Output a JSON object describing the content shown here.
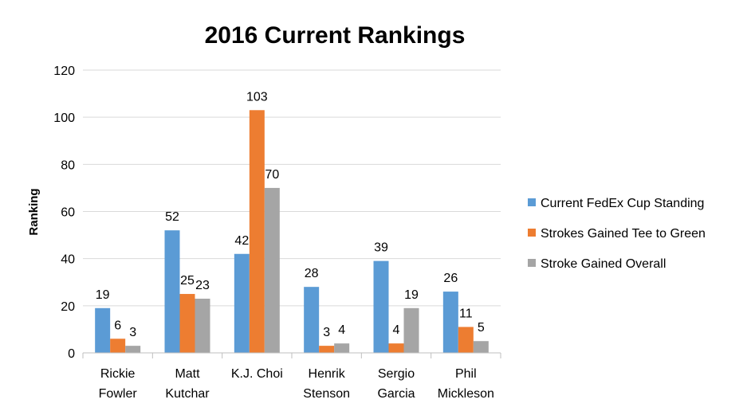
{
  "chart_data": {
    "type": "bar",
    "title": "2016 Current Rankings",
    "xlabel": "",
    "ylabel": "Ranking",
    "ylim": [
      0,
      120
    ],
    "yticks": [
      0,
      20,
      40,
      60,
      80,
      100,
      120
    ],
    "grid": true,
    "legend_position": "right",
    "categories": [
      [
        "Rickie",
        "Fowler"
      ],
      [
        "Matt",
        "Kutchar"
      ],
      [
        "K.J. Choi"
      ],
      [
        "Henrik",
        "Stenson"
      ],
      [
        "Sergio",
        "Garcia"
      ],
      [
        "Phil",
        "Mickleson"
      ]
    ],
    "series": [
      {
        "name": "Current FedEx Cup Standing",
        "color": "#5B9BD5",
        "values": [
          19,
          52,
          42,
          28,
          39,
          26
        ]
      },
      {
        "name": "Strokes Gained Tee to Green",
        "color": "#ED7D31",
        "values": [
          6,
          25,
          103,
          3,
          4,
          11
        ]
      },
      {
        "name": "Stroke Gained Overall",
        "color": "#A5A5A5",
        "values": [
          3,
          23,
          70,
          4,
          19,
          5
        ]
      }
    ]
  }
}
